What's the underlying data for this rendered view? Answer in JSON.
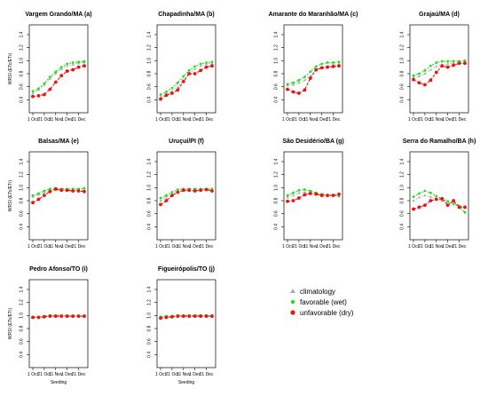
{
  "colors": {
    "climatology": "#aaaaaa",
    "wet": "#22dd22",
    "dry": "#ee1111"
  },
  "legend": {
    "items": [
      {
        "key": "climatology",
        "label": "climatology",
        "marker": "triangle"
      },
      {
        "key": "wet",
        "label": "favorable (wet)",
        "marker": "circle"
      },
      {
        "key": "dry",
        "label": "unfavorable (dry)",
        "marker": "circle"
      }
    ]
  },
  "chart_data": [
    {
      "type": "line",
      "title": "Vargem Grando/MA (a)",
      "ylabel": "WRSI (ETc/ETr)",
      "xlabel": "",
      "ylim": [
        0.2,
        1.55
      ],
      "x_ticks": [
        "1 Oct",
        "21 Oct",
        "11 Nov",
        "1 Dec",
        "21 Dec"
      ],
      "y_ticks": [
        0.4,
        0.6,
        0.8,
        1.0,
        1.2,
        1.4
      ],
      "series": [
        {
          "key": "climatology",
          "values": [
            0.5,
            0.55,
            0.62,
            0.72,
            0.8,
            0.87,
            0.92,
            0.94,
            0.96,
            0.97
          ]
        },
        {
          "key": "wet",
          "values": [
            0.53,
            0.57,
            0.65,
            0.75,
            0.83,
            0.9,
            0.95,
            0.97,
            0.98,
            0.99
          ]
        },
        {
          "key": "dry",
          "values": [
            0.45,
            0.46,
            0.48,
            0.56,
            0.67,
            0.77,
            0.84,
            0.86,
            0.9,
            0.92
          ]
        }
      ]
    },
    {
      "type": "line",
      "title": "Chapadinha/MA (b)",
      "ylabel": "",
      "xlabel": "",
      "ylim": [
        0.2,
        1.55
      ],
      "x_ticks": [
        "1 Oct",
        "21 Oct",
        "11 Nov",
        "1 Dec",
        "21 Dec"
      ],
      "y_ticks": [
        0.4,
        0.6,
        0.8,
        1.0,
        1.2,
        1.4
      ],
      "series": [
        {
          "key": "climatology",
          "values": [
            0.45,
            0.48,
            0.53,
            0.6,
            0.7,
            0.8,
            0.87,
            0.92,
            0.95,
            0.96
          ]
        },
        {
          "key": "wet",
          "values": [
            0.48,
            0.52,
            0.58,
            0.66,
            0.76,
            0.85,
            0.91,
            0.95,
            0.97,
            0.98
          ]
        },
        {
          "key": "dry",
          "values": [
            0.41,
            0.47,
            0.5,
            0.55,
            0.68,
            0.8,
            0.8,
            0.85,
            0.9,
            0.92
          ]
        }
      ]
    },
    {
      "type": "line",
      "title": "Amarante do Maranhão/MA (c)",
      "ylabel": "",
      "xlabel": "",
      "ylim": [
        0.2,
        1.55
      ],
      "x_ticks": [
        "1 Oct",
        "21 Oct",
        "11 Nov",
        "1 Dec",
        "21 Dec"
      ],
      "y_ticks": [
        0.4,
        0.6,
        0.8,
        1.0,
        1.2,
        1.4
      ],
      "series": [
        {
          "key": "climatology",
          "values": [
            0.62,
            0.63,
            0.66,
            0.7,
            0.77,
            0.85,
            0.9,
            0.92,
            0.94,
            0.95
          ]
        },
        {
          "key": "wet",
          "values": [
            0.64,
            0.66,
            0.7,
            0.75,
            0.83,
            0.91,
            0.95,
            0.97,
            0.97,
            0.98
          ]
        },
        {
          "key": "dry",
          "values": [
            0.56,
            0.52,
            0.5,
            0.55,
            0.73,
            0.86,
            0.89,
            0.9,
            0.91,
            0.92
          ]
        }
      ]
    },
    {
      "type": "line",
      "title": "Grajaú/MA (d)",
      "ylabel": "",
      "xlabel": "",
      "ylim": [
        0.2,
        1.55
      ],
      "x_ticks": [
        "1 Oct",
        "21 Oct",
        "11 Nov",
        "1 Dec",
        "21 Dec"
      ],
      "y_ticks": [
        0.4,
        0.6,
        0.8,
        1.0,
        1.2,
        1.4
      ],
      "series": [
        {
          "key": "climatology",
          "values": [
            0.74,
            0.76,
            0.8,
            0.86,
            0.91,
            0.94,
            0.95,
            0.96,
            0.96,
            0.97
          ]
        },
        {
          "key": "wet",
          "values": [
            0.77,
            0.8,
            0.85,
            0.92,
            0.97,
            0.99,
            0.99,
            0.99,
            0.99,
            1.0
          ]
        },
        {
          "key": "dry",
          "values": [
            0.71,
            0.66,
            0.63,
            0.7,
            0.82,
            0.92,
            0.9,
            0.93,
            0.96,
            0.96
          ]
        }
      ]
    },
    {
      "type": "line",
      "title": "Balsas/MA (e)",
      "ylabel": "WRSI (ETc/ETr)",
      "xlabel": "",
      "ylim": [
        0.2,
        1.55
      ],
      "x_ticks": [
        "1 Oct",
        "21 Oct",
        "11 Nov",
        "1 Dec",
        "21 Dec"
      ],
      "y_ticks": [
        0.4,
        0.6,
        0.8,
        1.0,
        1.2,
        1.4
      ],
      "series": [
        {
          "key": "climatology",
          "values": [
            0.86,
            0.89,
            0.92,
            0.95,
            0.96,
            0.96,
            0.96,
            0.96,
            0.96,
            0.96
          ]
        },
        {
          "key": "wet",
          "values": [
            0.88,
            0.91,
            0.95,
            0.98,
            0.99,
            0.98,
            0.98,
            0.98,
            0.98,
            0.99
          ]
        },
        {
          "key": "dry",
          "values": [
            0.77,
            0.82,
            0.88,
            0.94,
            0.98,
            0.96,
            0.96,
            0.95,
            0.95,
            0.94
          ]
        }
      ]
    },
    {
      "type": "line",
      "title": "Uruçuí/PI  (f)",
      "ylabel": "",
      "xlabel": "",
      "ylim": [
        0.2,
        1.55
      ],
      "x_ticks": [
        "1 Oct",
        "21 Oct",
        "11 Nov",
        "1 Dec",
        "21 Dec"
      ],
      "y_ticks": [
        0.4,
        0.6,
        0.8,
        1.0,
        1.2,
        1.4
      ],
      "series": [
        {
          "key": "climatology",
          "values": [
            0.8,
            0.85,
            0.9,
            0.94,
            0.95,
            0.95,
            0.95,
            0.96,
            0.96,
            0.96
          ]
        },
        {
          "key": "wet",
          "values": [
            0.84,
            0.88,
            0.93,
            0.97,
            0.98,
            0.98,
            0.98,
            0.98,
            0.98,
            0.98
          ]
        },
        {
          "key": "dry",
          "values": [
            0.74,
            0.8,
            0.88,
            0.93,
            0.96,
            0.96,
            0.95,
            0.96,
            0.97,
            0.95
          ]
        }
      ]
    },
    {
      "type": "line",
      "title": "São Desidério/BA (g)",
      "ylabel": "",
      "xlabel": "",
      "ylim": [
        0.2,
        1.55
      ],
      "x_ticks": [
        "1 Oct",
        "21 Oct",
        "11 Nov",
        "1 Dec",
        "21 Dec"
      ],
      "y_ticks": [
        0.4,
        0.6,
        0.8,
        1.0,
        1.2,
        1.4
      ],
      "series": [
        {
          "key": "climatology",
          "values": [
            0.85,
            0.88,
            0.92,
            0.93,
            0.92,
            0.9,
            0.89,
            0.88,
            0.88,
            0.88
          ]
        },
        {
          "key": "wet",
          "values": [
            0.88,
            0.92,
            0.96,
            0.97,
            0.95,
            0.92,
            0.9,
            0.89,
            0.89,
            0.87
          ]
        },
        {
          "key": "dry",
          "values": [
            0.79,
            0.8,
            0.84,
            0.89,
            0.91,
            0.9,
            0.88,
            0.88,
            0.88,
            0.9
          ]
        }
      ]
    },
    {
      "type": "line",
      "title": "Serra do Ramalho/BA (h)",
      "ylabel": "",
      "xlabel": "",
      "ylim": [
        0.2,
        1.55
      ],
      "x_ticks": [
        "1 Oct",
        "21 Oct",
        "11 Nov",
        "1 Dec",
        "21 Dec"
      ],
      "y_ticks": [
        0.4,
        0.6,
        0.8,
        1.0,
        1.2,
        1.4
      ],
      "series": [
        {
          "key": "climatology",
          "values": [
            0.8,
            0.85,
            0.88,
            0.86,
            0.83,
            0.8,
            0.78,
            0.76,
            0.73,
            0.69
          ]
        },
        {
          "key": "wet",
          "values": [
            0.86,
            0.91,
            0.95,
            0.92,
            0.87,
            0.83,
            0.79,
            0.75,
            0.7,
            0.62
          ]
        },
        {
          "key": "dry",
          "values": [
            0.67,
            0.7,
            0.73,
            0.8,
            0.82,
            0.83,
            0.73,
            0.8,
            0.7,
            0.7
          ]
        }
      ]
    },
    {
      "type": "line",
      "title": "Pedro Afonso/TO  (i)",
      "ylabel": "WRSI (ETc/ETr)",
      "xlabel": "Seeding",
      "ylim": [
        0.2,
        1.55
      ],
      "x_ticks": [
        "1 Oct",
        "21 Oct",
        "11 Nov",
        "1 Dec",
        "21 Dec"
      ],
      "y_ticks": [
        0.4,
        0.6,
        0.8,
        1.0,
        1.2,
        1.4
      ],
      "series": [
        {
          "key": "climatology",
          "values": [
            0.98,
            0.98,
            0.99,
            0.99,
            0.99,
            0.99,
            0.99,
            0.99,
            0.99,
            0.99
          ]
        },
        {
          "key": "wet",
          "values": [
            0.98,
            0.98,
            0.99,
            1.0,
            1.0,
            1.0,
            0.99,
            0.99,
            0.99,
            0.99
          ]
        },
        {
          "key": "dry",
          "values": [
            0.97,
            0.97,
            0.98,
            0.99,
            0.99,
            0.99,
            0.99,
            0.99,
            0.99,
            0.99
          ]
        }
      ]
    },
    {
      "type": "line",
      "title": "Figueirópolis/TO (j)",
      "ylabel": "",
      "xlabel": "Seeding",
      "ylim": [
        0.2,
        1.55
      ],
      "x_ticks": [
        "1 Oct",
        "21 Oct",
        "11 Nov",
        "1 Dec",
        "21 Dec"
      ],
      "y_ticks": [
        0.4,
        0.6,
        0.8,
        1.0,
        1.2,
        1.4
      ],
      "series": [
        {
          "key": "climatology",
          "values": [
            0.97,
            0.98,
            0.98,
            0.99,
            0.99,
            0.99,
            0.99,
            0.99,
            0.99,
            0.99
          ]
        },
        {
          "key": "wet",
          "values": [
            0.98,
            0.99,
            0.99,
            1.0,
            1.0,
            1.0,
            1.0,
            1.0,
            1.0,
            1.0
          ]
        },
        {
          "key": "dry",
          "values": [
            0.96,
            0.97,
            0.98,
            0.99,
            0.99,
            0.99,
            0.99,
            0.99,
            0.99,
            0.99
          ]
        }
      ]
    }
  ]
}
